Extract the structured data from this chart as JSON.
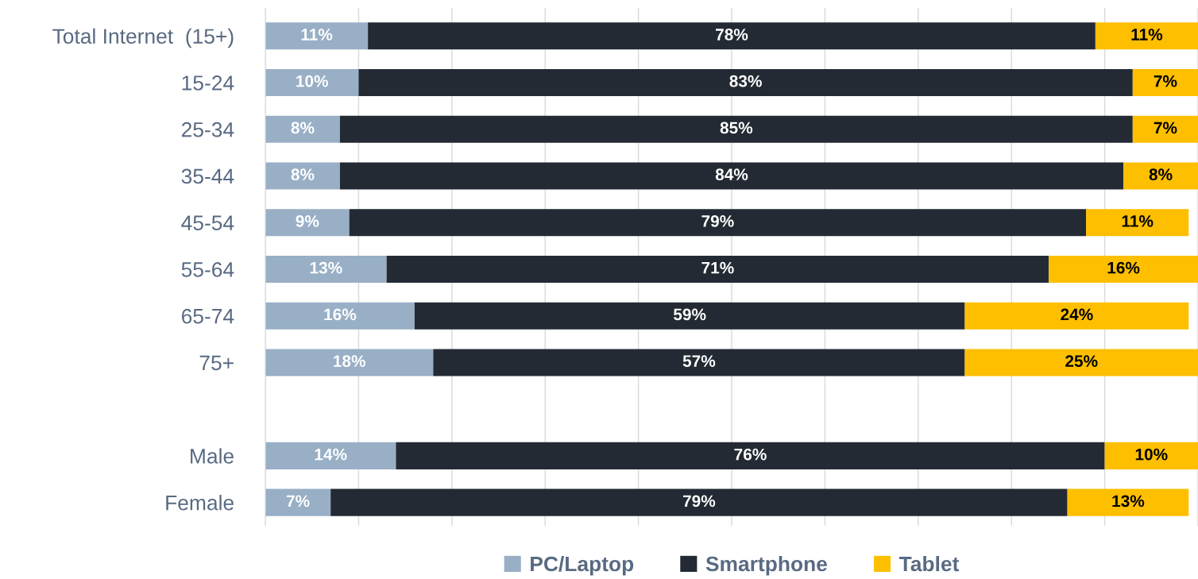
{
  "chart_data": {
    "type": "bar",
    "orientation": "horizontal",
    "stacked": true,
    "categories": [
      "Total Internet  (15+)",
      "15-24",
      "25-34",
      "35-44",
      "45-54",
      "55-64",
      "65-74",
      "75+",
      null,
      "Male",
      "Female"
    ],
    "series": [
      {
        "name": "PC/Laptop",
        "color": "#98afc6",
        "values": [
          11,
          10,
          8,
          8,
          9,
          13,
          16,
          18,
          null,
          14,
          7
        ],
        "value_labels": [
          "11%",
          "10%",
          "8%",
          "8%",
          "9%",
          "13%",
          "16%",
          "18%",
          null,
          "14%",
          "7%"
        ]
      },
      {
        "name": "Smartphone",
        "color": "#232a33",
        "values": [
          78,
          83,
          85,
          84,
          79,
          71,
          59,
          57,
          null,
          76,
          79
        ],
        "value_labels": [
          "78%",
          "83%",
          "85%",
          "84%",
          "79%",
          "71%",
          "59%",
          "57%",
          null,
          "76%",
          "79%"
        ]
      },
      {
        "name": "Tablet",
        "color": "#fdbf00",
        "values": [
          11,
          7,
          7,
          8,
          11,
          16,
          24,
          25,
          null,
          10,
          13
        ],
        "value_labels": [
          "11%",
          "7%",
          "7%",
          "8%",
          "11%",
          "16%",
          "24%",
          "25%",
          null,
          "10%",
          "13%"
        ]
      }
    ],
    "tick_labels": "y",
    "grid": "x",
    "legend": "bottom"
  }
}
